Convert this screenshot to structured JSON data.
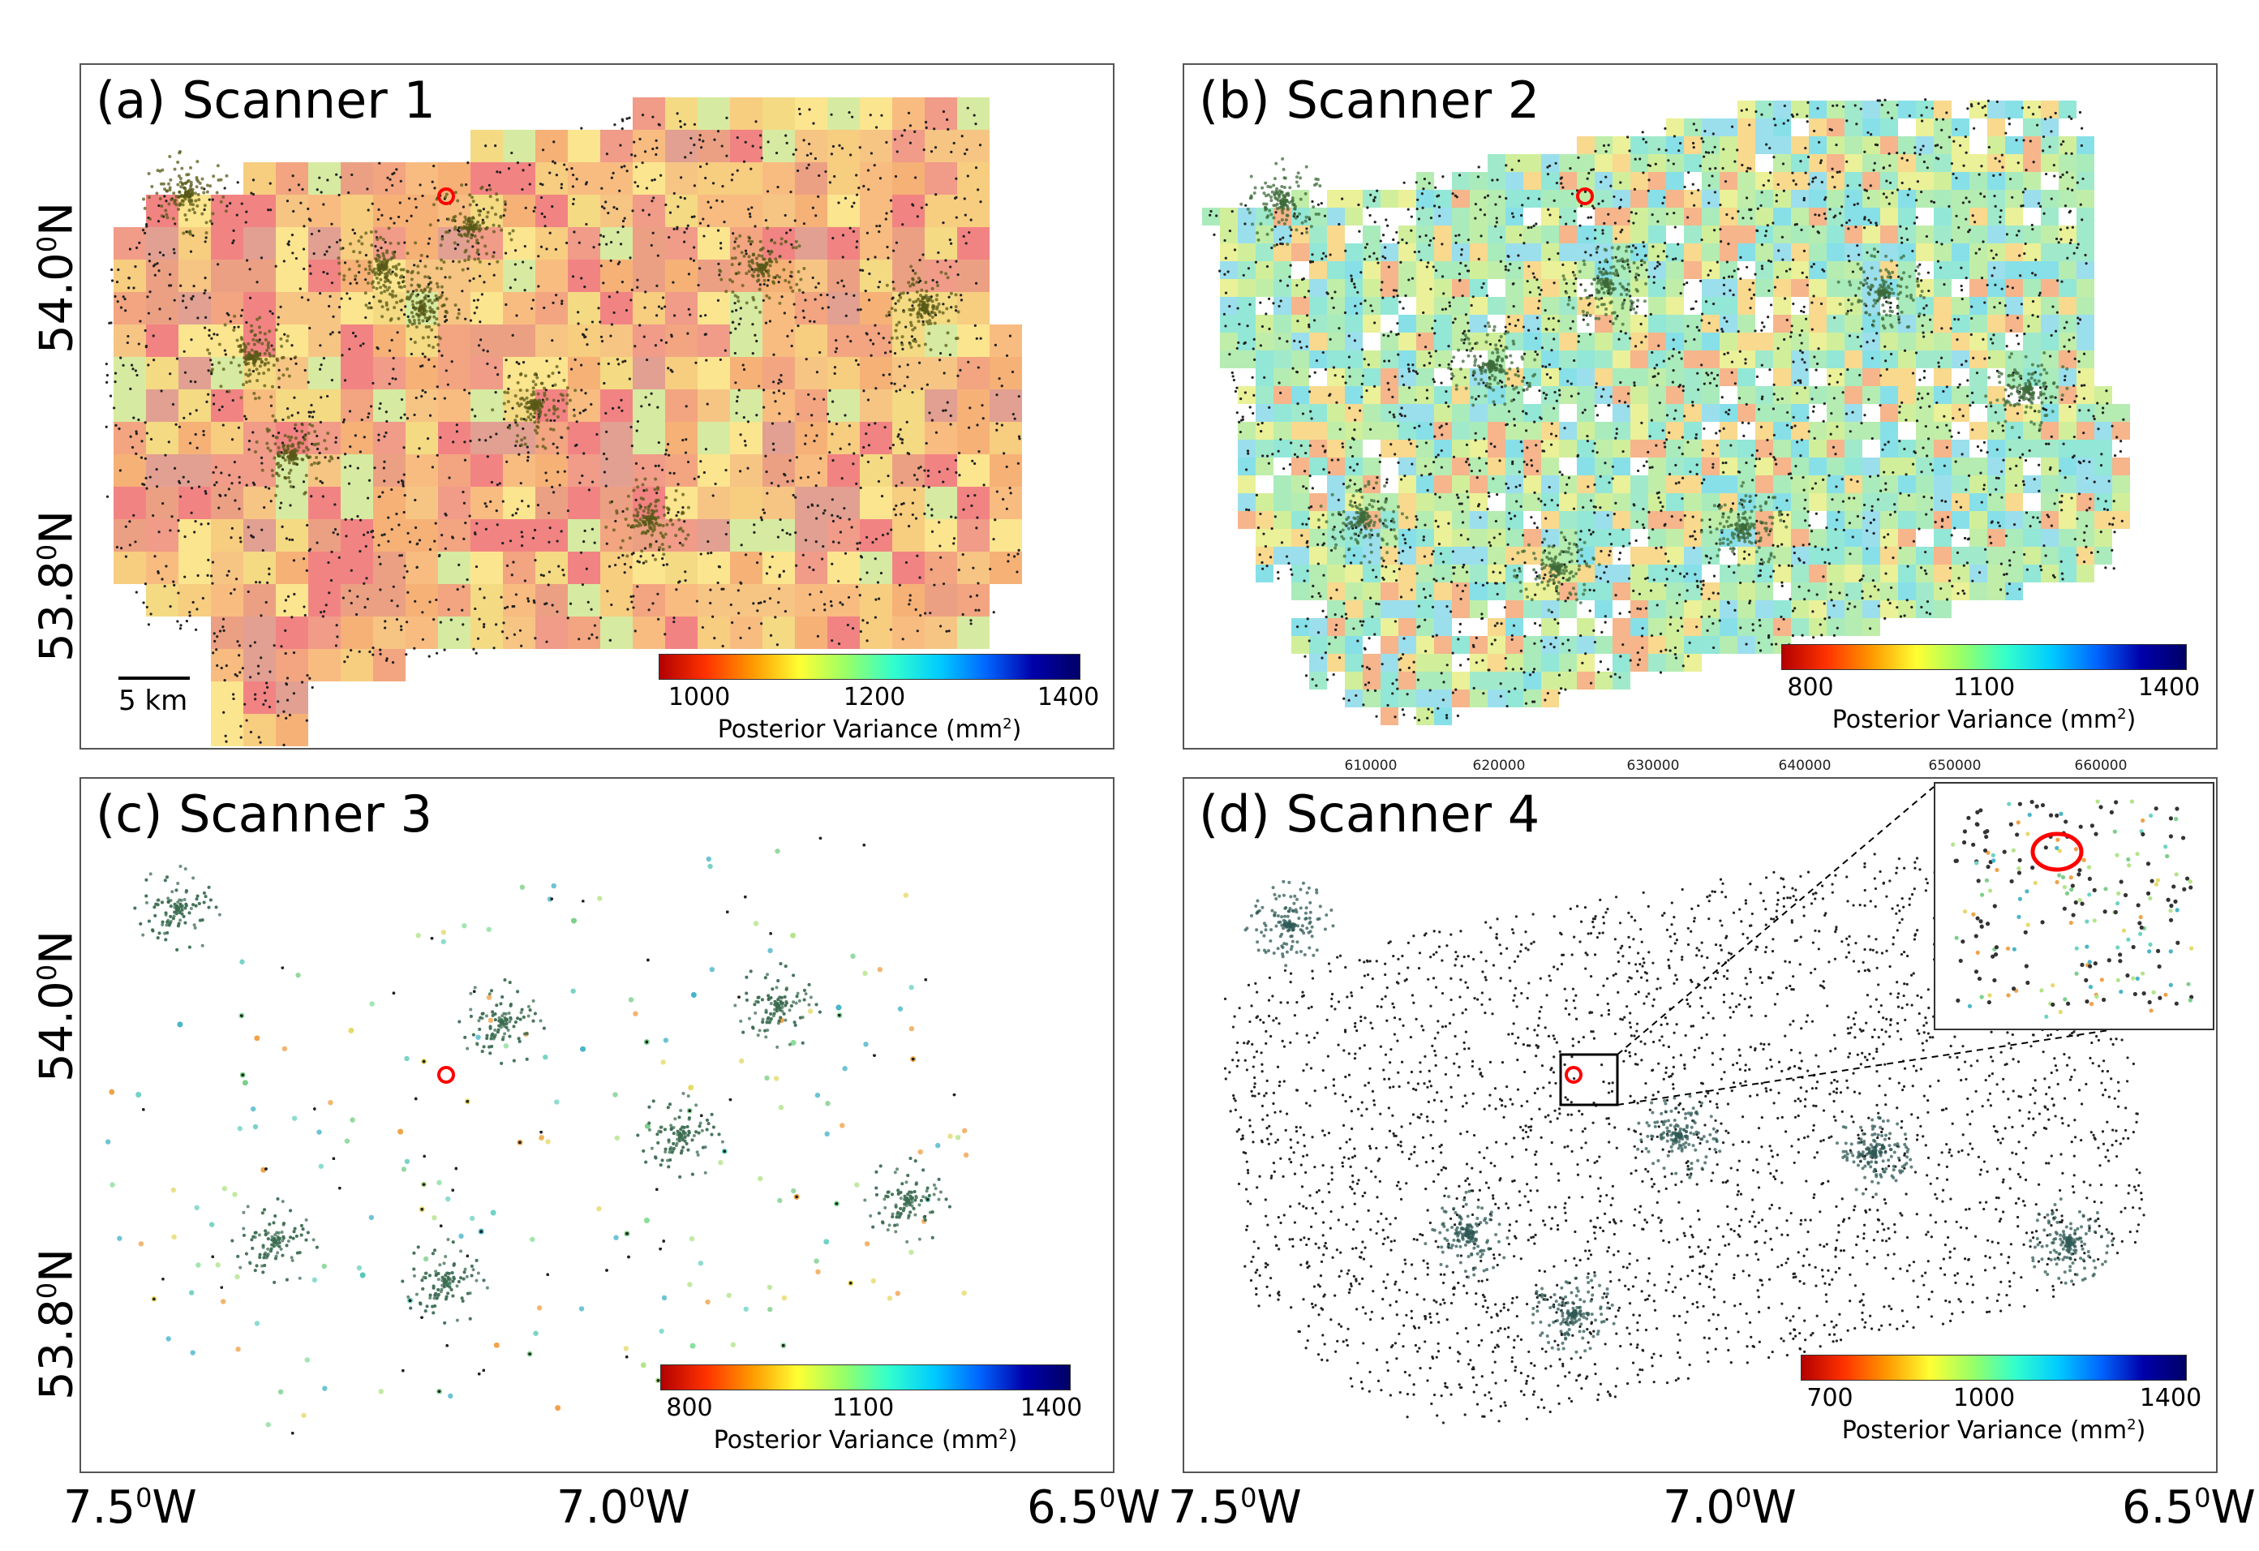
{
  "panels": [
    {
      "title": "(a) Scanner 1",
      "palette": "warm",
      "colorbar": {
        "ticks": [
          "1000",
          "1200",
          "1400"
        ],
        "label": "Posterior Variance (mm",
        "unit_sup": "2",
        "label_end": ")"
      }
    },
    {
      "title": "(b) Scanner 2",
      "palette": "mixed",
      "colorbar": {
        "ticks": [
          "800",
          "1100",
          "1400"
        ],
        "label": "Posterior Variance (mm",
        "unit_sup": "2",
        "label_end": ")"
      }
    },
    {
      "title": "(c) Scanner 3",
      "palette": "points",
      "colorbar": {
        "ticks": [
          "800",
          "1100",
          "1400"
        ],
        "label": "Posterior Variance (mm",
        "unit_sup": "2",
        "label_end": ")"
      }
    },
    {
      "title": "(d) Scanner 4",
      "palette": "sparse",
      "colorbar": {
        "ticks": [
          "700",
          "1000",
          "1400"
        ],
        "label": "Posterior Variance (mm",
        "unit_sup": "2",
        "label_end": ")"
      }
    }
  ],
  "y_axis": {
    "labels": [
      {
        "deg": "54.0",
        "sup": "0",
        "dir": "N"
      },
      {
        "deg": "53.8",
        "sup": "0",
        "dir": "N"
      }
    ]
  },
  "x_axis": {
    "labels": [
      {
        "deg": "7.5",
        "sup": "0",
        "dir": "W"
      },
      {
        "deg": "7.0",
        "sup": "0",
        "dir": "W"
      },
      {
        "deg": "6.5",
        "sup": "0",
        "dir": "W"
      }
    ]
  },
  "easting_ticks": [
    "610000",
    "620000",
    "630000",
    "640000",
    "650000",
    "660000"
  ],
  "scale_bar": "5 km",
  "colors": {
    "marker": "#ff0000",
    "points": "#222222",
    "frame": "#555555"
  }
}
